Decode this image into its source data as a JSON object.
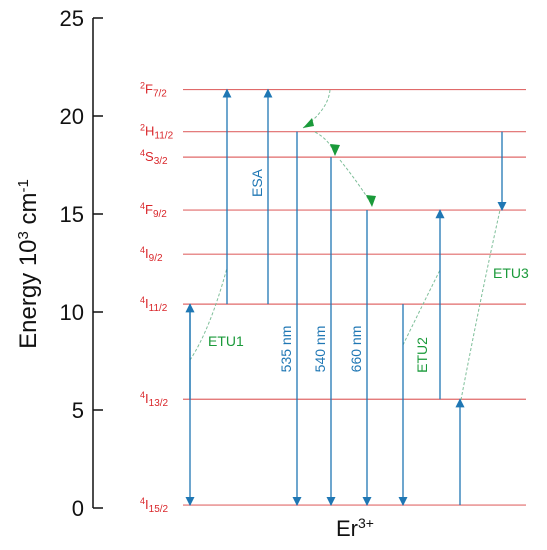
{
  "colors": {
    "level": "#e06a6a",
    "level_label": "#d9262a",
    "arrow": "#1f77b4",
    "etu_label": "#1a9a3a",
    "dashed": "#7fbf9a",
    "axis": "#111111"
  },
  "y_axis": {
    "title_main": "Energy 10",
    "title_sup": "3",
    "title_unit": " cm",
    "title_unit_sup": "-1",
    "min": 0,
    "max": 25,
    "ticks": [
      {
        "value": 0,
        "label": "0"
      },
      {
        "value": 5,
        "label": "5"
      },
      {
        "value": 10,
        "label": "10"
      },
      {
        "value": 15,
        "label": "15"
      },
      {
        "value": 20,
        "label": "20"
      },
      {
        "value": 25,
        "label": "25"
      }
    ]
  },
  "ion_label": {
    "main": "Er",
    "sup": "3+"
  },
  "levels": [
    {
      "id": "4I15_2",
      "sup": "4",
      "main": "I",
      "sub": "15/2",
      "energy": 0.15
    },
    {
      "id": "4I13_2",
      "sup": "4",
      "main": "I",
      "sub": "13/2",
      "energy": 5.55
    },
    {
      "id": "4I11_2",
      "sup": "4",
      "main": "I",
      "sub": "11/2",
      "energy": 10.4
    },
    {
      "id": "4I9_2",
      "sup": "4",
      "main": "I",
      "sub": "9/2",
      "energy": 12.95
    },
    {
      "id": "4F9_2",
      "sup": "4",
      "main": "F",
      "sub": "9/2",
      "energy": 15.2
    },
    {
      "id": "4S3_2",
      "sup": "4",
      "main": "S",
      "sub": "3/2",
      "energy": 17.9
    },
    {
      "id": "2H11_2",
      "sup": "2",
      "main": "H",
      "sub": "11/2",
      "energy": 19.2
    },
    {
      "id": "2F7_2",
      "sup": "2",
      "main": "F",
      "sub": "7/2",
      "energy": 21.35
    }
  ],
  "transitions": [
    {
      "id": "etu1-up-1",
      "from": 5.55,
      "to": 10.4,
      "x": 190,
      "label": ""
    },
    {
      "id": "etu1-down-1",
      "from": 10.4,
      "to": 0.15,
      "x": 190,
      "label": ""
    },
    {
      "id": "esa-up-1",
      "from": 10.4,
      "to": 21.35,
      "x": 227,
      "label": ""
    },
    {
      "id": "esa-up-2",
      "from": 10.4,
      "to": 21.35,
      "x": 268,
      "label": ""
    },
    {
      "id": "emit-535",
      "from": 19.2,
      "to": 0.15,
      "x": 297,
      "label": ""
    },
    {
      "id": "emit-540",
      "from": 17.9,
      "to": 0.15,
      "x": 331,
      "label": ""
    },
    {
      "id": "emit-660",
      "from": 15.2,
      "to": 0.15,
      "x": 367,
      "label": ""
    },
    {
      "id": "etu2-down",
      "from": 10.4,
      "to": 0.15,
      "x": 403,
      "label": ""
    },
    {
      "id": "etu2-up",
      "from": 5.55,
      "to": 15.2,
      "x": 440,
      "label": ""
    },
    {
      "id": "etu3-up",
      "from": 0.15,
      "to": 5.55,
      "x": 460,
      "label": ""
    },
    {
      "id": "etu3-down",
      "from": 19.2,
      "to": 15.2,
      "x": 502,
      "label": ""
    }
  ],
  "labels": {
    "esa": "ESA",
    "etu1": "ETU1",
    "etu2": "ETU2",
    "etu3": "ETU3",
    "nm535": "535 nm",
    "nm540": "540 nm",
    "nm660": "660 nm"
  }
}
